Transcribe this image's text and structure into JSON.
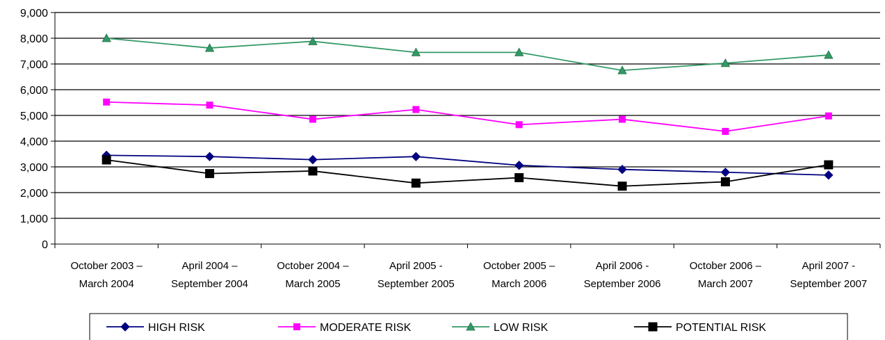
{
  "chart_data": {
    "type": "line",
    "categories": [
      [
        "October 2003 –",
        "March 2004"
      ],
      [
        "April 2004 –",
        "September 2004"
      ],
      [
        "October 2004 –",
        "March 2005"
      ],
      [
        "April 2005 -",
        "September 2005"
      ],
      [
        "October 2005 –",
        "March 2006"
      ],
      [
        "April 2006 -",
        "September 2006"
      ],
      [
        "October 2006 –",
        "March 2007"
      ],
      [
        "April 2007 -",
        "September 2007"
      ]
    ],
    "series": [
      {
        "name": "HIGH RISK",
        "color": "#000080",
        "marker": "diamond",
        "values": [
          3450,
          3400,
          3280,
          3400,
          3060,
          2900,
          2790,
          2680
        ]
      },
      {
        "name": "MODERATE RISK",
        "color": "#ff00ff",
        "marker": "square",
        "values": [
          5520,
          5400,
          4850,
          5230,
          4640,
          4850,
          4380,
          4980
        ]
      },
      {
        "name": "LOW RISK",
        "color": "#339966",
        "marker": "triangle",
        "values": [
          8000,
          7620,
          7880,
          7450,
          7450,
          6750,
          7030,
          7350
        ]
      },
      {
        "name": "POTENTIAL RISK",
        "color": "#000000",
        "marker": "square-large",
        "values": [
          3270,
          2740,
          2840,
          2370,
          2580,
          2250,
          2420,
          3080
        ]
      }
    ],
    "yticks": [
      "0",
      "1,000",
      "2,000",
      "3,000",
      "4,000",
      "5,000",
      "6,000",
      "7,000",
      "8,000",
      "9,000"
    ],
    "ylim": [
      0,
      9000
    ],
    "ystep": 1000,
    "grid": true,
    "legend_position": "bottom"
  }
}
